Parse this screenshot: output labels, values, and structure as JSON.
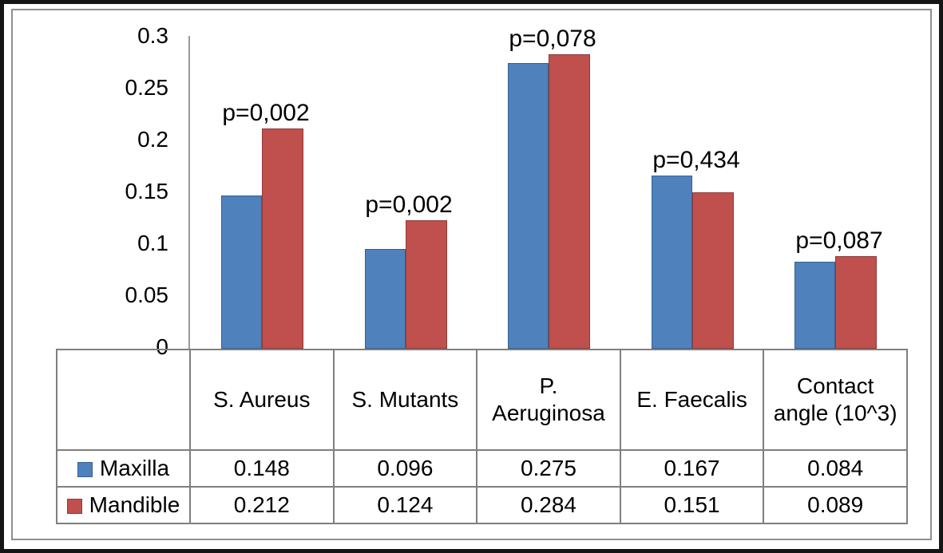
{
  "chart_data": {
    "type": "bar",
    "title": "",
    "xlabel": "",
    "ylabel": "",
    "categories": [
      "S. Aureus",
      "S. Mutants",
      "P. Aeruginosa",
      "E. Faecalis",
      "Contact angle (10^3)"
    ],
    "series": [
      {
        "name": "Maxilla",
        "color": "#4f81bd",
        "border_color": "#36618e",
        "values": [
          0.148,
          0.096,
          0.275,
          0.167,
          0.084
        ]
      },
      {
        "name": "Mandible",
        "color": "#c0504d",
        "border_color": "#8f3a37",
        "values": [
          0.212,
          0.124,
          0.284,
          0.151,
          0.089
        ]
      }
    ],
    "annotations": [
      "p=0,002",
      "p=0,002",
      "p=0,078",
      "p=0,434",
      "p=0,087"
    ],
    "y_ticks": [
      "0.3",
      "0.25",
      "0.2",
      "0.15",
      "0.1",
      "0.05",
      "0"
    ],
    "ylim": [
      0,
      0.3
    ],
    "grid": false,
    "legend_position": "table-left"
  },
  "table": {
    "headers": [
      "S. Aureus",
      "S. Mutants",
      "P. Aeruginosa",
      "E. Faecalis",
      "Contact angle (10^3)"
    ],
    "rows": [
      {
        "label": "Maxilla",
        "values": [
          "0.148",
          "0.096",
          "0.275",
          "0.167",
          "0.084"
        ]
      },
      {
        "label": "Mandible",
        "values": [
          "0.212",
          "0.124",
          "0.284",
          "0.151",
          "0.089"
        ]
      }
    ]
  }
}
